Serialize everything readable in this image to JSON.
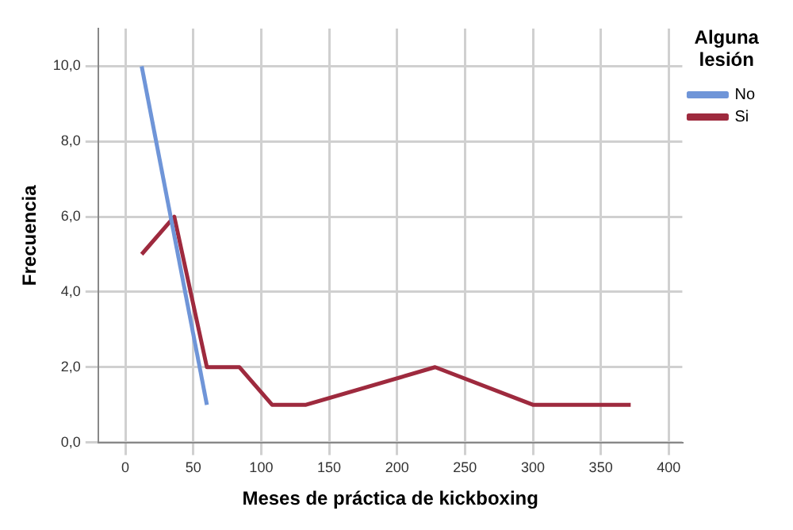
{
  "chart_data": {
    "type": "line",
    "xlabel": "Meses de práctica de kickboxing",
    "ylabel": "Frecuencia",
    "legend_title": "Alguna lesión",
    "legend": "right",
    "xlim": [
      -20,
      410
    ],
    "xticks": [
      0,
      50,
      100,
      150,
      200,
      250,
      300,
      350,
      400
    ],
    "ylim": [
      0,
      11
    ],
    "yticks": [
      {
        "value": 0,
        "label": "0,0"
      },
      {
        "value": 2,
        "label": "2,0"
      },
      {
        "value": 4,
        "label": "4,0"
      },
      {
        "value": 6,
        "label": "6,0"
      },
      {
        "value": 8,
        "label": "8,0"
      },
      {
        "value": 10,
        "label": "10,0"
      }
    ],
    "grid": true,
    "marker": "none",
    "line_style": "solid",
    "series": [
      {
        "name": "No",
        "color": "#6f95d8",
        "x": [
          12,
          60
        ],
        "values": [
          10,
          1
        ]
      },
      {
        "name": "Si",
        "color": "#9e2a3e",
        "x": [
          12,
          36,
          60,
          84,
          108,
          133,
          228,
          300,
          372
        ],
        "values": [
          5,
          6,
          2,
          2,
          1,
          1,
          2,
          1,
          1
        ]
      }
    ]
  }
}
